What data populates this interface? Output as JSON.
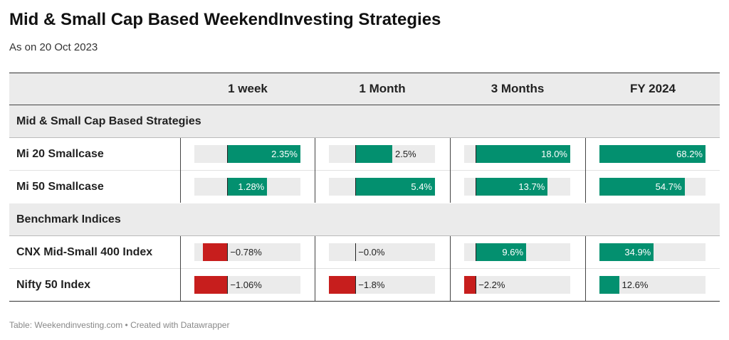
{
  "title": "Mid & Small Cap Based WeekendInvesting Strategies",
  "subtitle": "As on 20 Oct 2023",
  "footer": "Table: Weekendinvesting.com • Created with Datawrapper",
  "colors": {
    "positive": "#03906f",
    "negative": "#c71e1d",
    "track": "#ebebeb"
  },
  "columns": [
    "1 week",
    "1 Month",
    "3 Months",
    "FY 2024"
  ],
  "chart_data": {
    "type": "table",
    "columns": [
      "1 week",
      "1 Month",
      "3 Months",
      "FY 2024"
    ],
    "groups": [
      {
        "name": "Mid & Small Cap Based Strategies",
        "rows": [
          {
            "name": "Mi 20 Smallcase",
            "values": [
              2.35,
              2.5,
              18.0,
              68.2
            ],
            "labels": [
              "2.35%",
              "2.5%",
              "18.0%",
              "68.2%"
            ]
          },
          {
            "name": "Mi 50 Smallcase",
            "values": [
              1.28,
              5.4,
              13.7,
              54.7
            ],
            "labels": [
              "1.28%",
              "5.4%",
              "13.7%",
              "54.7%"
            ]
          }
        ]
      },
      {
        "name": "Benchmark Indices",
        "rows": [
          {
            "name": "CNX Mid-Small 400 Index",
            "values": [
              -0.78,
              -0.0,
              9.6,
              34.9
            ],
            "labels": [
              "−0.78%",
              "−0.0%",
              "9.6%",
              "34.9%"
            ]
          },
          {
            "name": "Nifty 50 Index",
            "values": [
              -1.06,
              -1.8,
              -2.2,
              12.6
            ],
            "labels": [
              "−1.06%",
              "−1.8%",
              "−2.2%",
              "12.6%"
            ]
          }
        ]
      }
    ],
    "column_ranges": [
      [
        -1.06,
        2.35
      ],
      [
        -1.8,
        5.4
      ],
      [
        -2.2,
        18.0
      ],
      [
        0,
        68.2
      ]
    ]
  }
}
